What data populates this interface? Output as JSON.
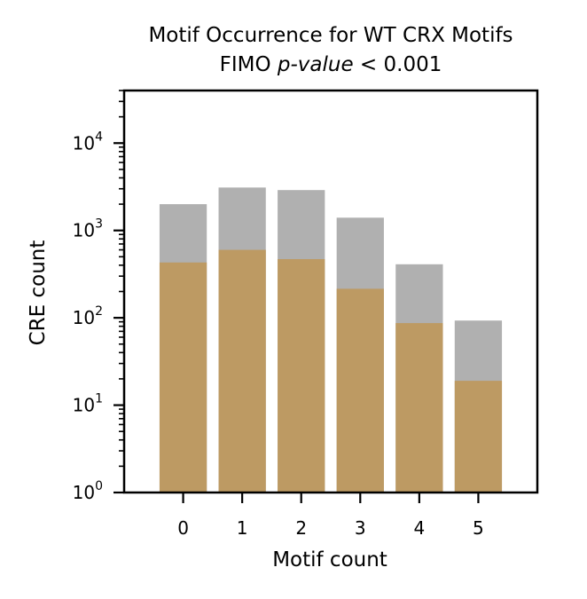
{
  "chart_data": {
    "type": "bar",
    "title": "Motif Occurrence for WT CRX Motifs",
    "subtitle": {
      "prefix": "FIMO ",
      "italic": "p-value",
      "suffix": " < 0.001"
    },
    "xlabel": "Motif count",
    "ylabel": "CRE count",
    "x_ticks": [
      "0",
      "1",
      "2",
      "3",
      "4",
      "5"
    ],
    "xlim": [
      -1,
      6
    ],
    "yscale": "log",
    "ylim": [
      1,
      40000
    ],
    "y_ticks": [
      {
        "value": 1,
        "base": "10",
        "exp": "0"
      },
      {
        "value": 10,
        "base": "10",
        "exp": "1"
      },
      {
        "value": 100,
        "base": "10",
        "exp": "2"
      },
      {
        "value": 1000,
        "base": "10",
        "exp": "3"
      },
      {
        "value": 10000,
        "base": "10",
        "exp": "4"
      }
    ],
    "grid": false,
    "legend": "none",
    "categories": [
      0,
      1,
      2,
      3,
      4,
      5
    ],
    "series": [
      {
        "values": [
          2000,
          3100,
          2900,
          1400,
          410,
          93
        ],
        "color": "#b0b0b0"
      },
      {
        "values": [
          430,
          600,
          470,
          215,
          87,
          19
        ],
        "color": "#bd9a63"
      }
    ]
  }
}
